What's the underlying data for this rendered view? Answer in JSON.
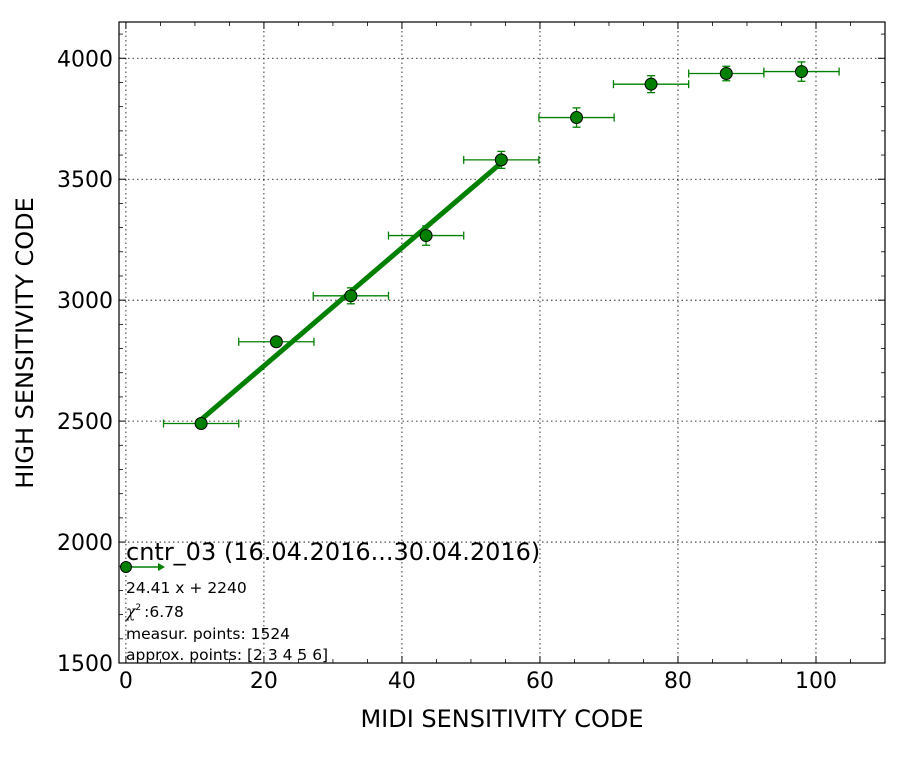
{
  "chart_data": {
    "type": "scatter",
    "title": "",
    "xlabel": "MIDI SENSITIVITY CODE",
    "ylabel": "HIGH SENSITIVITY CODE",
    "xlim": [
      -1,
      110
    ],
    "ylim": [
      1500,
      4150
    ],
    "xticks": [
      0,
      20,
      40,
      60,
      80,
      100
    ],
    "yticks": [
      1500,
      2000,
      2500,
      3000,
      3500,
      4000
    ],
    "x_minor_step": 5,
    "y_minor_step": 100,
    "grid": true,
    "colors": {
      "series": "#008000",
      "marker_face": "#008000",
      "marker_edge": "#000000"
    },
    "series": [
      {
        "kind": "errorbar-points",
        "points": [
          {
            "x": 10.9,
            "y": 2490,
            "xerr": 5.45,
            "yerr": 8
          },
          {
            "x": 21.8,
            "y": 2828,
            "xerr": 5.45,
            "yerr": 18
          },
          {
            "x": 32.6,
            "y": 3018,
            "xerr": 5.45,
            "yerr": 33
          },
          {
            "x": 43.5,
            "y": 3267,
            "xerr": 5.45,
            "yerr": 40
          },
          {
            "x": 54.4,
            "y": 3580,
            "xerr": 5.45,
            "yerr": 35
          },
          {
            "x": 65.3,
            "y": 3755,
            "xerr": 5.45,
            "yerr": 40
          },
          {
            "x": 76.1,
            "y": 3893,
            "xerr": 5.45,
            "yerr": 35
          },
          {
            "x": 87.0,
            "y": 3937,
            "xerr": 5.45,
            "yerr": 30
          },
          {
            "x": 97.9,
            "y": 3945,
            "xerr": 5.45,
            "yerr": 40
          }
        ]
      },
      {
        "kind": "fit-line",
        "x_range": [
          10.9,
          54.4
        ],
        "slope": 24.41,
        "intercept": 2240
      }
    ],
    "annotation": {
      "title": "cntr_03 (16.04.2016...30.04.2016)",
      "fit": "24.41 x + 2240",
      "chi2": ":6.78",
      "measur_points": "measur. points: 1524",
      "approx_points": "approx. points: [2 3 4 5 6]"
    }
  }
}
